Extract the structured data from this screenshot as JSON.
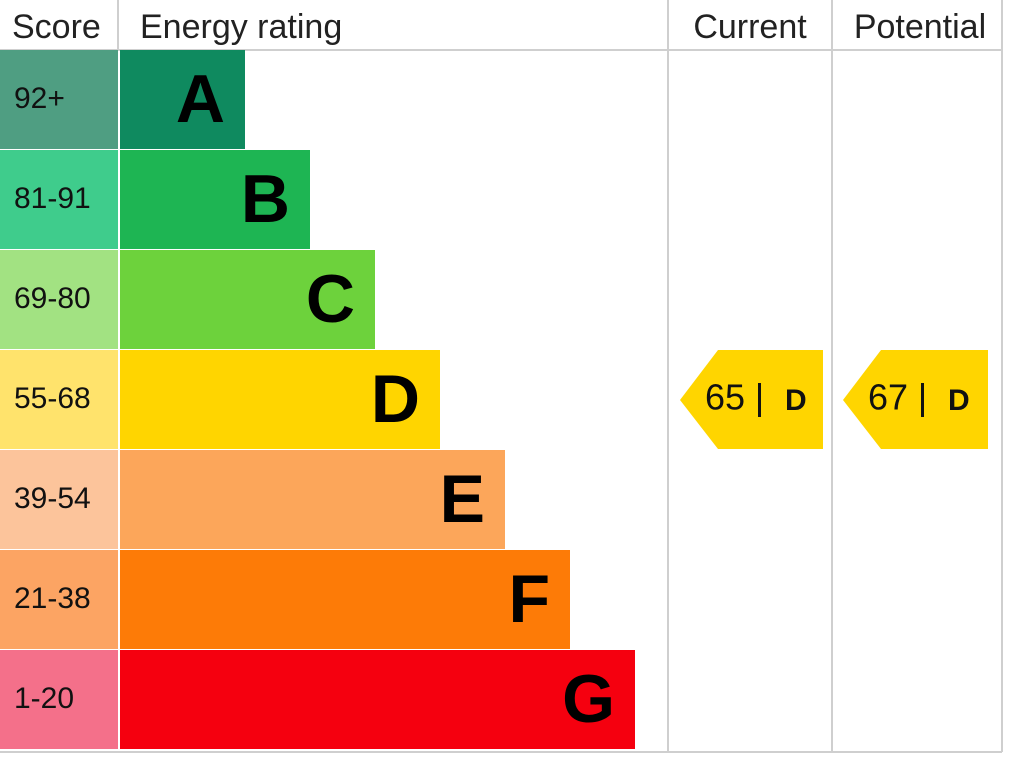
{
  "header": {
    "score": "Score",
    "energy_rating": "Energy rating",
    "current": "Current",
    "potential": "Potential"
  },
  "bands": [
    {
      "score": "92+",
      "letter": "A",
      "color": "#0f8a5f",
      "score_color": "#4f9e82"
    },
    {
      "score": "81-91",
      "letter": "B",
      "color": "#1eb553",
      "score_color": "#3fcc8c"
    },
    {
      "score": "69-80",
      "letter": "C",
      "color": "#6dd23c",
      "score_color": "#a2e282"
    },
    {
      "score": "55-68",
      "letter": "D",
      "color": "#ffd500",
      "score_color": "#ffe36c"
    },
    {
      "score": "39-54",
      "letter": "E",
      "color": "#fca65a",
      "score_color": "#fcc49b"
    },
    {
      "score": "21-38",
      "letter": "F",
      "color": "#fd7b07",
      "score_color": "#fca463"
    },
    {
      "score": "1-20",
      "letter": "G",
      "color": "#f5000f",
      "score_color": "#f4708a"
    }
  ],
  "current": {
    "value": 65,
    "rating": "D",
    "color": "#ffd500"
  },
  "potential": {
    "value": 67,
    "rating": "D",
    "color": "#ffd500"
  }
}
